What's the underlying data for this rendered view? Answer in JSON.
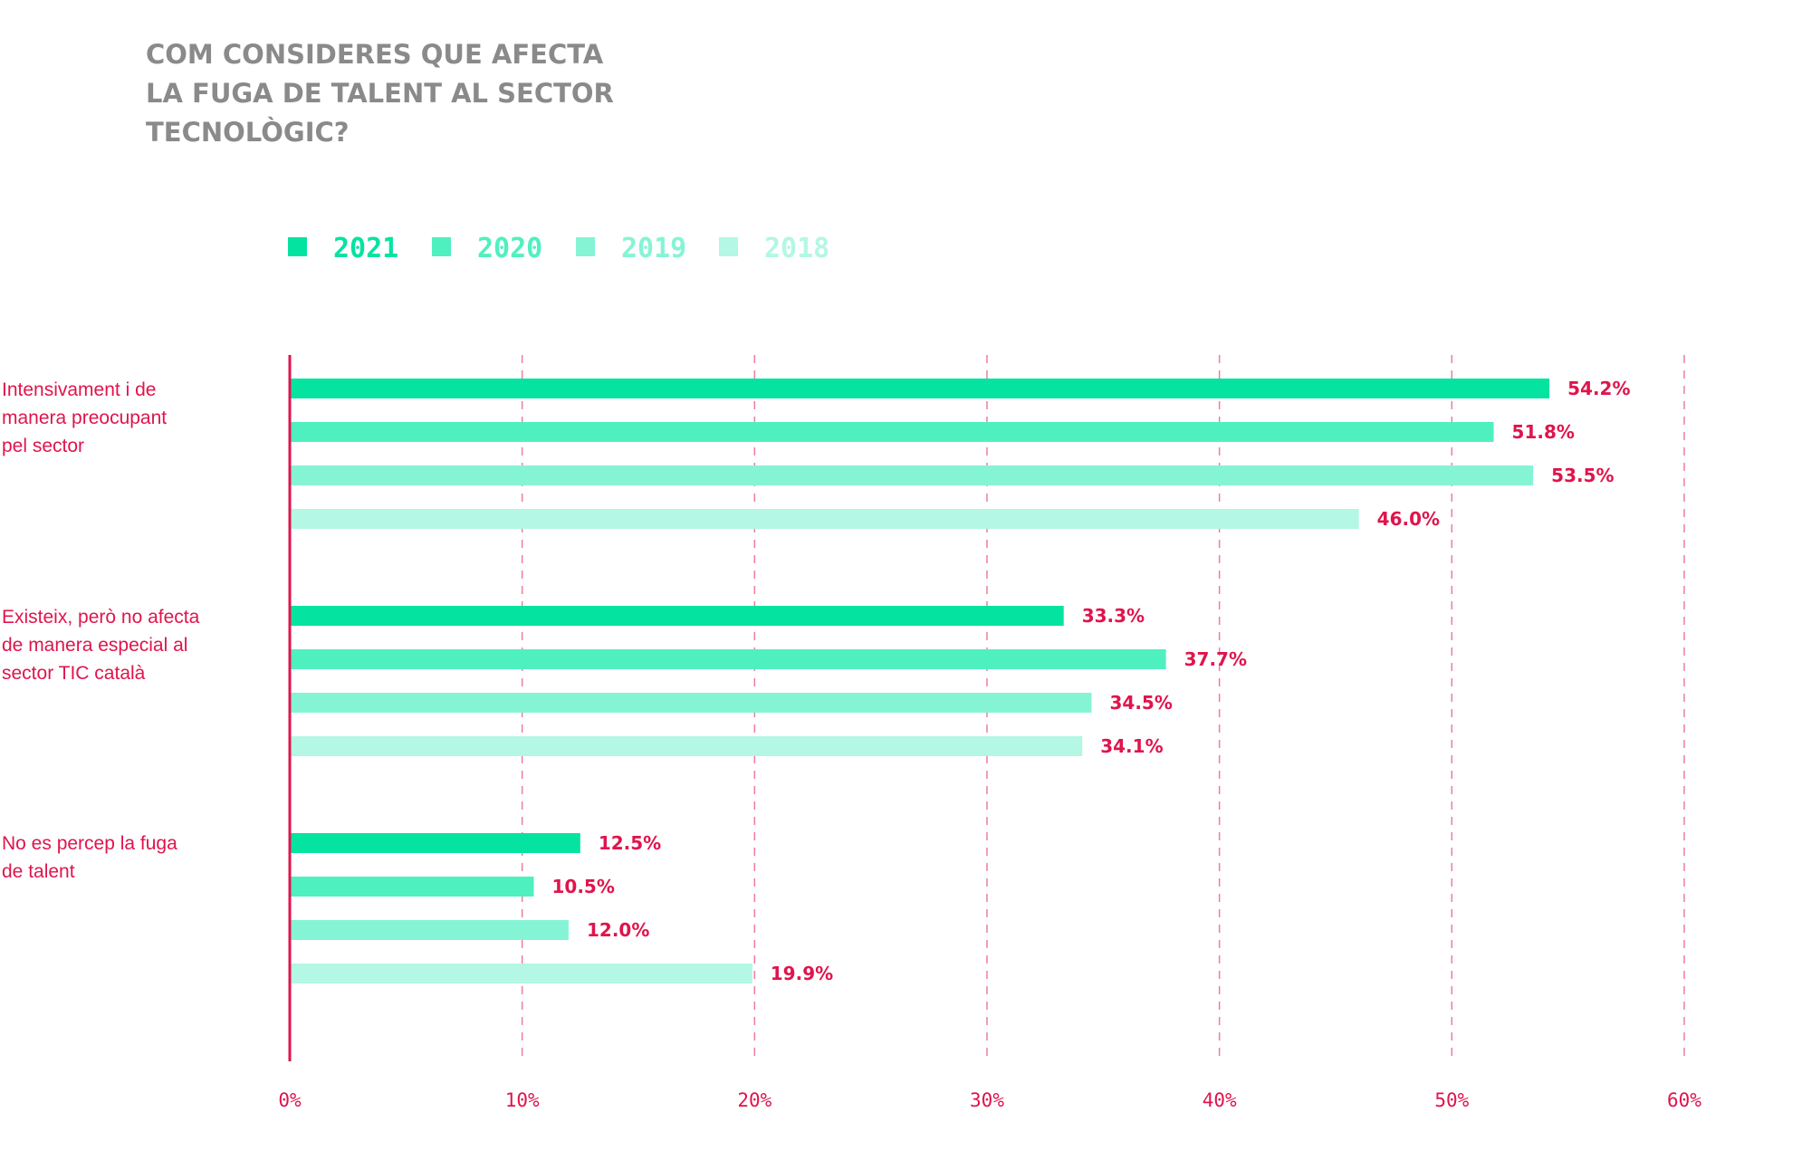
{
  "title_lines": [
    "COM CONSIDERES QUE AFECTA",
    "LA FUGA DE TALENT AL SECTOR",
    "TECNOLÒGIC?"
  ],
  "colors": {
    "accent": "#e0144c",
    "title": "#8a8a8a",
    "series": [
      "#05e3a1",
      "#4ff0c0",
      "#85f4d5",
      "#b3f7e4"
    ]
  },
  "chart_data": {
    "type": "bar",
    "orientation": "horizontal",
    "categories": [
      [
        "Intensivament i de",
        "manera preocupant",
        "pel sector"
      ],
      [
        "Existeix, però no afecta",
        "de manera especial al",
        "sector TIC català"
      ],
      [
        "No es percep la fuga",
        "de talent"
      ]
    ],
    "series": [
      {
        "name": "2021",
        "values": [
          54.2,
          33.3,
          12.5
        ],
        "labels": [
          "54.2%",
          "33.3%",
          "12.5%"
        ]
      },
      {
        "name": "2020",
        "values": [
          51.8,
          37.7,
          10.5
        ],
        "labels": [
          "51.8%",
          "37.7%",
          "10.5%"
        ]
      },
      {
        "name": "2019",
        "values": [
          53.5,
          34.5,
          12.0
        ],
        "labels": [
          "53.5%",
          "34.5%",
          "12.0%"
        ]
      },
      {
        "name": "2018",
        "values": [
          46.0,
          34.1,
          19.9
        ],
        "labels": [
          "46.0%",
          "34.1%",
          "19.9%"
        ]
      }
    ],
    "xlim": [
      0,
      60
    ],
    "ticks": [
      0,
      10,
      20,
      30,
      40,
      50,
      60
    ],
    "tick_labels": [
      "0%",
      "10%",
      "20%",
      "30%",
      "40%",
      "50%",
      "60%"
    ],
    "grid": "vertical-dashed",
    "legend_position": "top-left"
  }
}
